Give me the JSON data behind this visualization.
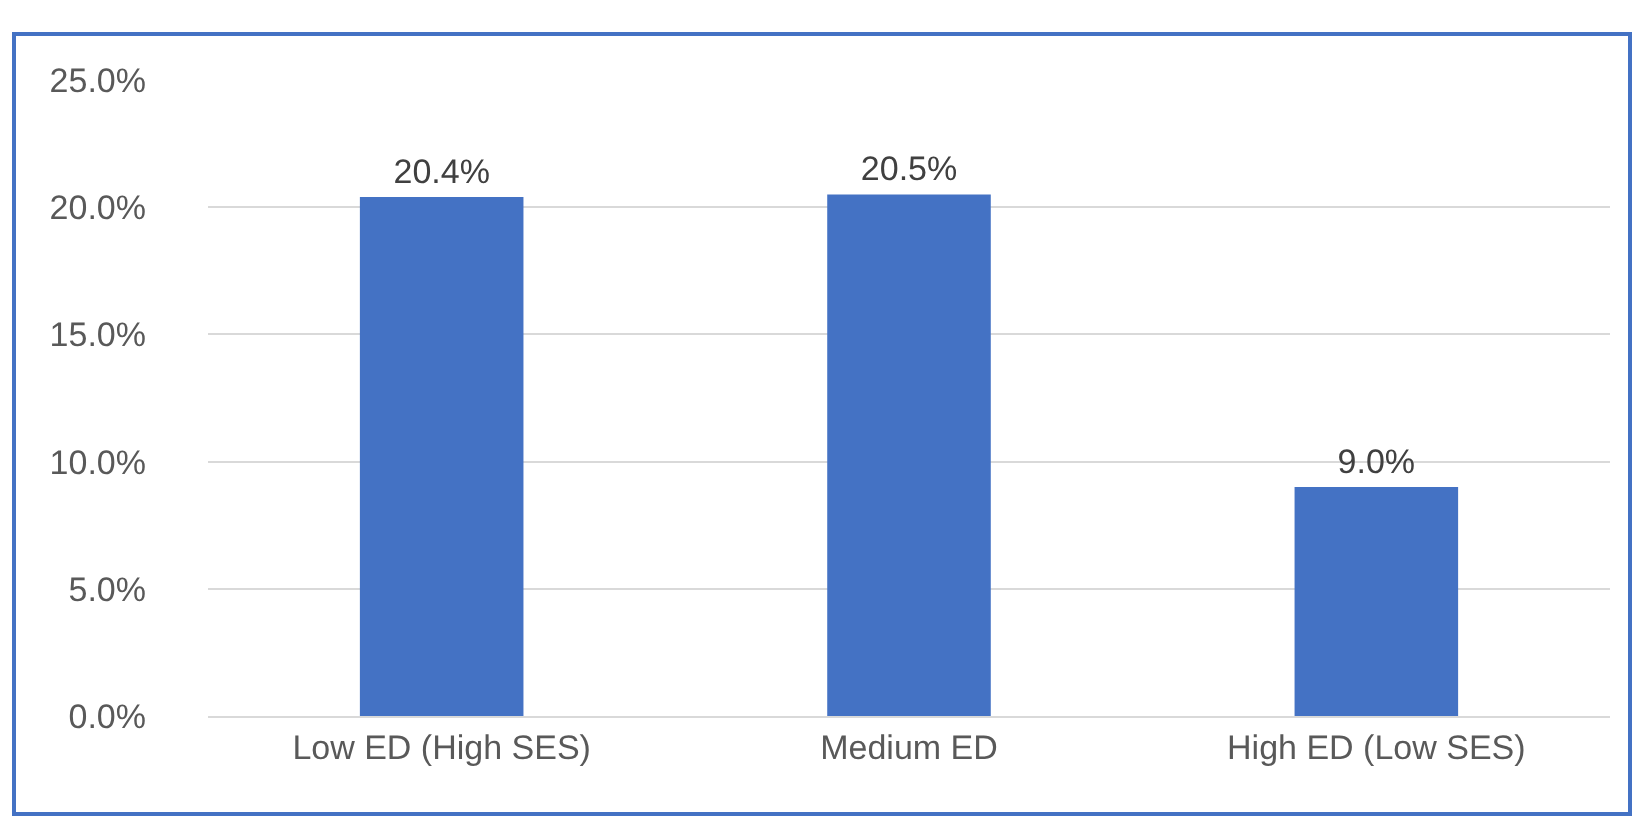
{
  "chart_data": {
    "type": "bar",
    "categories": [
      "Low ED (High SES)",
      "Medium ED",
      "High ED (Low SES)"
    ],
    "values": [
      20.4,
      20.5,
      9.0
    ],
    "color": "#4472c4",
    "value_labels": [
      "20.4%",
      "20.5%",
      "9.0%"
    ],
    "ylim": [
      0,
      25
    ],
    "yticks": [
      {
        "value": 0,
        "label": "0.0%"
      },
      {
        "value": 5,
        "label": "5.0%"
      },
      {
        "value": 10,
        "label": "10.0%"
      },
      {
        "value": 15,
        "label": "15.0%"
      },
      {
        "value": 20,
        "label": "20.0%"
      },
      {
        "value": 25,
        "label": "25.0%"
      }
    ],
    "grid": "y",
    "legend": false
  }
}
